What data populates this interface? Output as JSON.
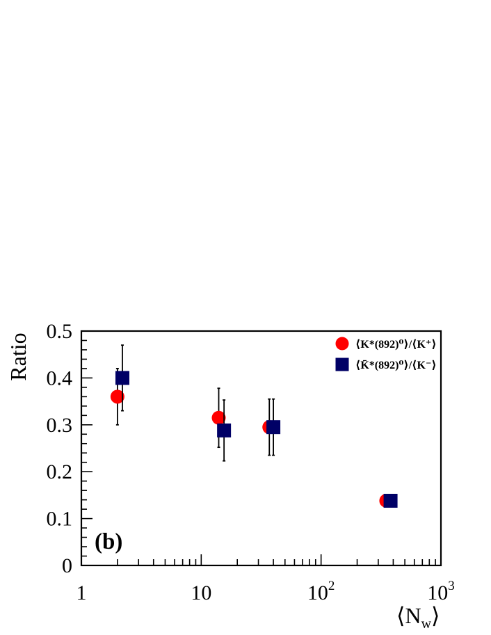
{
  "chart_data": {
    "type": "scatter",
    "panel_label": "(b)",
    "ylabel": "Ratio",
    "xlabel": "⟨N",
    "xlabel_sub": "w",
    "xlabel_close": "⟩",
    "x_scale": "log",
    "xlim": [
      1,
      1000
    ],
    "ylim": [
      0,
      0.5
    ],
    "x_ticks": [
      {
        "value": 1,
        "label": "1",
        "sup": ""
      },
      {
        "value": 10,
        "label": "10",
        "sup": ""
      },
      {
        "value": 100,
        "label": "10",
        "sup": "2"
      },
      {
        "value": 1000,
        "label": "10",
        "sup": "3"
      }
    ],
    "y_ticks": [
      {
        "value": 0,
        "label": "0"
      },
      {
        "value": 0.1,
        "label": "0.1"
      },
      {
        "value": 0.2,
        "label": "0.2"
      },
      {
        "value": 0.3,
        "label": "0.3"
      },
      {
        "value": 0.4,
        "label": "0.4"
      },
      {
        "value": 0.5,
        "label": "0.5"
      }
    ],
    "grid": false,
    "legend_position": "top-right",
    "series": [
      {
        "name": "⟨K*(892)⁰⟩/⟨K⁺⟩",
        "marker": "circle",
        "color": "#ff0000",
        "points": [
          {
            "x": 2.0,
            "y": 0.36,
            "err": 0.06
          },
          {
            "x": 14.0,
            "y": 0.315,
            "err": 0.063
          },
          {
            "x": 37.0,
            "y": 0.295,
            "err": 0.06
          },
          {
            "x": 350.0,
            "y": 0.138,
            "err": 0.0
          }
        ]
      },
      {
        "name": "⟨K̄*(892)⁰⟩/⟨K⁻⟩",
        "marker": "square",
        "color": "#000066",
        "points": [
          {
            "x": 2.2,
            "y": 0.4,
            "err": 0.07
          },
          {
            "x": 15.5,
            "y": 0.288,
            "err": 0.065
          },
          {
            "x": 40.0,
            "y": 0.295,
            "err": 0.06
          },
          {
            "x": 380.0,
            "y": 0.138,
            "err": 0.0
          }
        ]
      }
    ]
  }
}
